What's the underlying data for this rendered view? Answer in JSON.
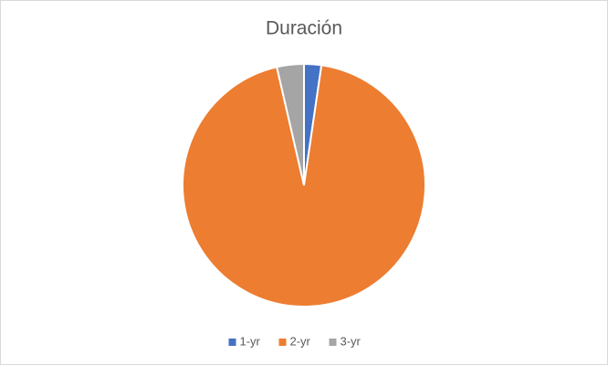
{
  "chart_data": {
    "type": "pie",
    "title": "Duración",
    "categories": [
      "1-yr",
      "2-yr",
      "3-yr"
    ],
    "values": [
      2.3,
      94.1,
      3.6
    ],
    "colors": [
      "#4472c4",
      "#ed7d31",
      "#a5a5a5"
    ],
    "legend": "bottom"
  }
}
